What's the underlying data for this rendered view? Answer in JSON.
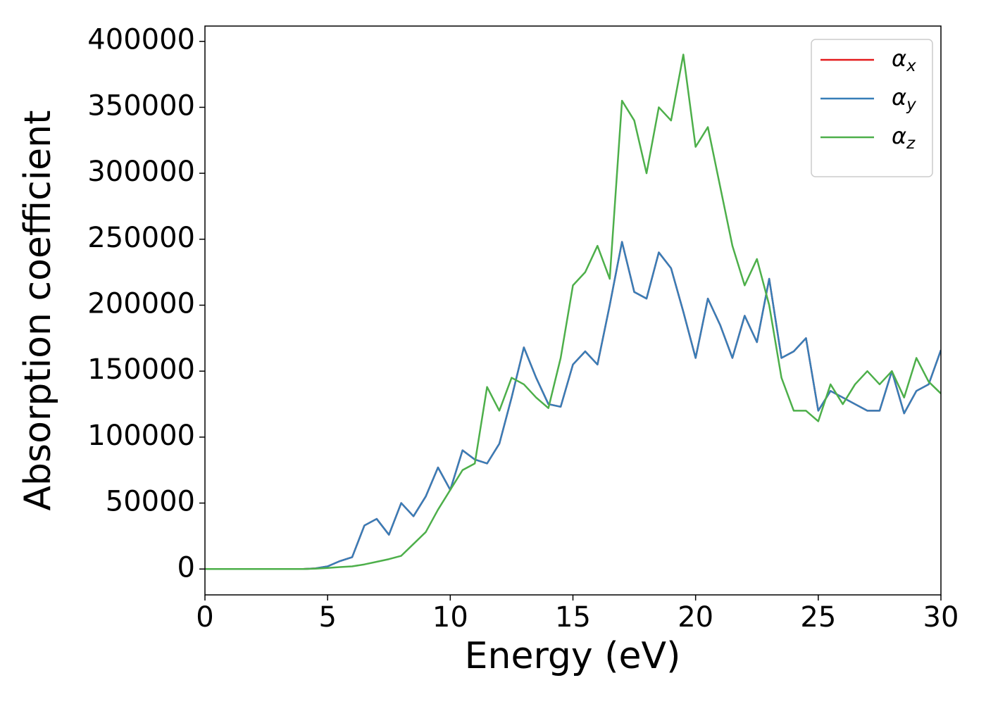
{
  "chart_data": {
    "type": "line",
    "xlabel": "Energy (eV)",
    "ylabel": "Absorption coefficient",
    "x": [
      0,
      1,
      2,
      3,
      4,
      4.5,
      5,
      5.5,
      6,
      6.5,
      7,
      7.5,
      8,
      8.5,
      9,
      9.5,
      10,
      10.5,
      11,
      11.5,
      12,
      12.5,
      13,
      13.5,
      14,
      14.5,
      15,
      15.5,
      16,
      16.5,
      17,
      17.5,
      18,
      18.5,
      19,
      19.5,
      20,
      20.5,
      21,
      21.5,
      22,
      22.5,
      23,
      23.5,
      24,
      24.5,
      25,
      25.5,
      26,
      26.5,
      27,
      27.5,
      28,
      28.5,
      29,
      29.5,
      30
    ],
    "series": [
      {
        "name": "αx",
        "color": "#e41a1c",
        "values": [
          0,
          0,
          0,
          0,
          0,
          500,
          2000,
          6000,
          9000,
          33000,
          38000,
          26000,
          50000,
          40000,
          55000,
          77000,
          60000,
          90000,
          83000,
          80000,
          95000,
          130000,
          168000,
          145000,
          125000,
          123000,
          155000,
          165000,
          155000,
          200000,
          248000,
          210000,
          205000,
          240000,
          228000,
          195000,
          160000,
          205000,
          185000,
          160000,
          192000,
          172000,
          220000,
          160000,
          165000,
          175000,
          120000,
          135000,
          130000,
          125000,
          120000,
          120000,
          150000,
          118000,
          135000,
          140000,
          166000
        ]
      },
      {
        "name": "αy",
        "color": "#377eb8",
        "values": [
          0,
          0,
          0,
          0,
          0,
          500,
          2000,
          6000,
          9000,
          33000,
          38000,
          26000,
          50000,
          40000,
          55000,
          77000,
          60000,
          90000,
          83000,
          80000,
          95000,
          130000,
          168000,
          145000,
          125000,
          123000,
          155000,
          165000,
          155000,
          200000,
          248000,
          210000,
          205000,
          240000,
          228000,
          195000,
          160000,
          205000,
          185000,
          160000,
          192000,
          172000,
          220000,
          160000,
          165000,
          175000,
          120000,
          135000,
          130000,
          125000,
          120000,
          120000,
          150000,
          118000,
          135000,
          140000,
          166000
        ]
      },
      {
        "name": "αz",
        "color": "#4daf4a",
        "values": [
          0,
          0,
          0,
          0,
          0,
          300,
          800,
          1500,
          2000,
          3500,
          5500,
          7500,
          10000,
          19000,
          28000,
          45000,
          60000,
          75000,
          80000,
          138000,
          120000,
          145000,
          140000,
          130000,
          122000,
          160000,
          215000,
          225000,
          245000,
          220000,
          355000,
          340000,
          300000,
          350000,
          340000,
          390000,
          320000,
          335000,
          290000,
          245000,
          215000,
          235000,
          200000,
          145000,
          120000,
          120000,
          112000,
          140000,
          125000,
          140000,
          150000,
          140000,
          150000,
          130000,
          160000,
          142000,
          133000
        ]
      }
    ],
    "xlim": [
      0,
      30
    ],
    "xticks": [
      0,
      5,
      10,
      15,
      20,
      25,
      30
    ],
    "ylim": [
      -19600,
      411600
    ],
    "yticks": [
      0,
      50000,
      100000,
      150000,
      200000,
      250000,
      300000,
      350000,
      400000
    ],
    "legend": "upper right"
  }
}
